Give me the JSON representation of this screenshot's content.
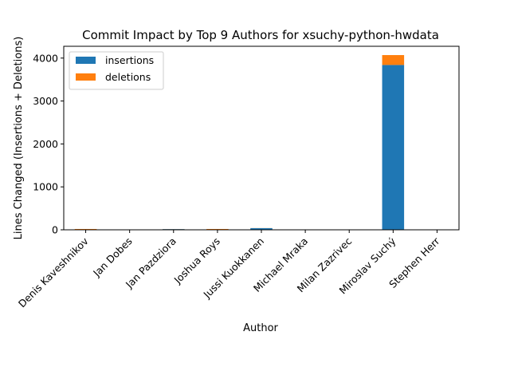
{
  "chart_data": {
    "type": "bar",
    "stacked": true,
    "title": "Commit Impact by Top 9 Authors for xsuchy-python-hwdata",
    "xlabel": "Author",
    "ylabel": "Lines Changed (Insertions + Deletions)",
    "categories": [
      "Denis Kaveshnikov",
      "Jan Dobes",
      "Jan Pazdziora",
      "Joshua Roys",
      "Jussi Kuokkanen",
      "Michael Mraka",
      "Milan Zazrivec",
      "Miroslav Suchý",
      "Stephen Herr"
    ],
    "series": [
      {
        "name": "insertions",
        "color": "#1f77b4",
        "values": [
          3,
          1,
          16,
          5,
          38,
          1,
          1,
          3840,
          1
        ]
      },
      {
        "name": "deletions",
        "color": "#ff7f0e",
        "values": [
          16,
          1,
          2,
          14,
          2,
          1,
          1,
          230,
          1
        ]
      }
    ],
    "ylim": [
      0,
      4275
    ],
    "yticks": [
      0,
      1000,
      2000,
      3000,
      4000
    ],
    "legend": "top-left",
    "grid": false
  }
}
